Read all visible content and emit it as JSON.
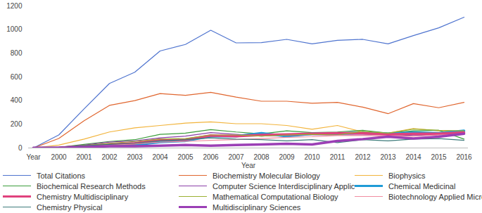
{
  "chart_data": {
    "type": "line",
    "x_label": "Year",
    "categories": [
      "Year",
      "2000",
      "2001",
      "2002",
      "2003",
      "2004",
      "2005",
      "2006",
      "2007",
      "2008",
      "2009",
      "2010",
      "2011",
      "2012",
      "2013",
      "2014",
      "2015",
      "2016"
    ],
    "ylim": [
      0,
      1200
    ],
    "yticks": [
      0,
      200,
      400,
      600,
      800,
      1000,
      1200
    ],
    "grid": false,
    "legend": "bottom",
    "series": [
      {
        "name": "Total Citations",
        "color": "#4f74cf",
        "line_style": "thin",
        "values": [
          0,
          110,
          330,
          545,
          640,
          820,
          875,
          995,
          888,
          890,
          918,
          880,
          910,
          918,
          880,
          950,
          1015,
          1105
        ]
      },
      {
        "name": "Biochemistry Molecular Biology",
        "color": "#e0662f",
        "line_style": "thin",
        "values": [
          0,
          80,
          230,
          360,
          400,
          460,
          445,
          470,
          430,
          395,
          395,
          378,
          385,
          345,
          290,
          375,
          340,
          385
        ]
      },
      {
        "name": "Biophysics",
        "color": "#f2b43c",
        "line_style": "thin",
        "values": [
          0,
          25,
          75,
          135,
          170,
          190,
          210,
          220,
          205,
          205,
          190,
          158,
          190,
          135,
          125,
          165,
          145,
          140
        ]
      },
      {
        "name": "Biochemical Research Methods",
        "color": "#3a9c3a",
        "line_style": "thin",
        "values": [
          0,
          5,
          30,
          55,
          70,
          115,
          125,
          155,
          135,
          120,
          145,
          130,
          135,
          150,
          125,
          145,
          150,
          75
        ]
      },
      {
        "name": "Computer Science Interdisciplinary Applications",
        "color": "#8b3fa8",
        "line_style": "thin",
        "values": [
          0,
          5,
          25,
          50,
          60,
          85,
          100,
          130,
          115,
          100,
          110,
          110,
          110,
          110,
          115,
          105,
          110,
          120
        ]
      },
      {
        "name": "Chemical Medicinal",
        "color": "#1f9bd6",
        "line_style": "thick",
        "values": [
          0,
          2,
          10,
          20,
          25,
          50,
          60,
          100,
          100,
          125,
          100,
          120,
          120,
          130,
          120,
          130,
          125,
          145
        ]
      },
      {
        "name": "Chemistry Multidisciplinary",
        "color": "#e0427d",
        "line_style": "thick",
        "values": [
          0,
          2,
          15,
          30,
          40,
          70,
          70,
          105,
          100,
          110,
          115,
          120,
          125,
          125,
          115,
          120,
          120,
          130
        ]
      },
      {
        "name": "Mathematical Computational Biology",
        "color": "#9bb032",
        "line_style": "thin",
        "values": [
          0,
          3,
          20,
          40,
          55,
          75,
          80,
          110,
          110,
          100,
          110,
          115,
          110,
          140,
          125,
          160,
          150,
          145
        ]
      },
      {
        "name": "Biotechnology Applied Microbiology",
        "color": "#f08ca0",
        "line_style": "thin",
        "values": [
          0,
          2,
          10,
          25,
          35,
          50,
          55,
          65,
          70,
          80,
          90,
          95,
          105,
          105,
          100,
          100,
          110,
          115
        ]
      },
      {
        "name": "Chemistry Physical",
        "color": "#3d7a7a",
        "line_style": "thin",
        "values": [
          0,
          5,
          20,
          30,
          40,
          60,
          70,
          85,
          75,
          70,
          60,
          70,
          45,
          70,
          60,
          75,
          80,
          65
        ]
      },
      {
        "name": "Multidisciplinary Sciences",
        "color": "#9b3fb5",
        "line_style": "thick",
        "values": [
          0,
          2,
          8,
          15,
          15,
          20,
          25,
          20,
          25,
          30,
          35,
          30,
          60,
          75,
          95,
          80,
          95,
          120
        ]
      }
    ]
  }
}
